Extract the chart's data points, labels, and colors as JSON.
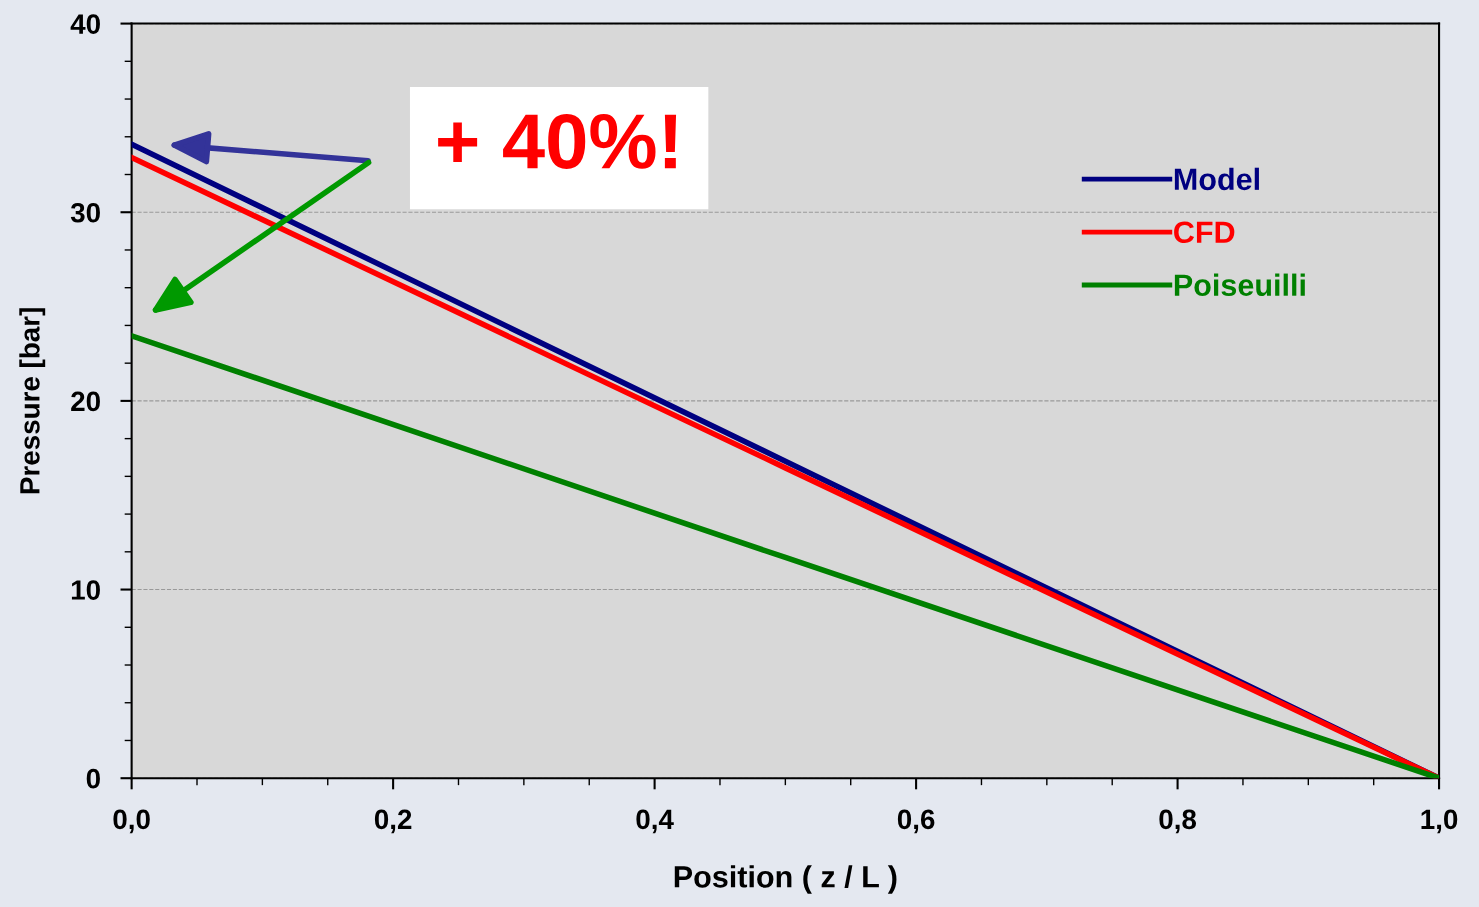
{
  "chart_data": {
    "type": "line",
    "xlabel": "Position ( z / L )",
    "ylabel": "Pressure [bar]",
    "x": [
      0,
      0.5,
      1
    ],
    "series": [
      {
        "name": "Model",
        "color": "#000080",
        "values": [
          33.6,
          16.8,
          0
        ]
      },
      {
        "name": "CFD",
        "color": "#ff0000",
        "values": [
          32.9,
          16.45,
          0
        ]
      },
      {
        "name": "Poiseuilli",
        "color": "#008000",
        "values": [
          23.45,
          11.7,
          0
        ]
      }
    ],
    "xlim": [
      0,
      1
    ],
    "ylim": [
      0,
      40
    ],
    "xticks": [
      {
        "value": 0,
        "label": "0,0"
      },
      {
        "value": 0.2,
        "label": "0,2"
      },
      {
        "value": 0.4,
        "label": "0,4"
      },
      {
        "value": 0.6,
        "label": "0,6"
      },
      {
        "value": 0.8,
        "label": "0,8"
      },
      {
        "value": 1,
        "label": "1,0"
      }
    ],
    "yticks": [
      0,
      10,
      20,
      30,
      40
    ],
    "grid": "y",
    "legend": "right",
    "line_style": "solid",
    "marker": "none",
    "annotations": [
      "+ 40%!"
    ]
  }
}
